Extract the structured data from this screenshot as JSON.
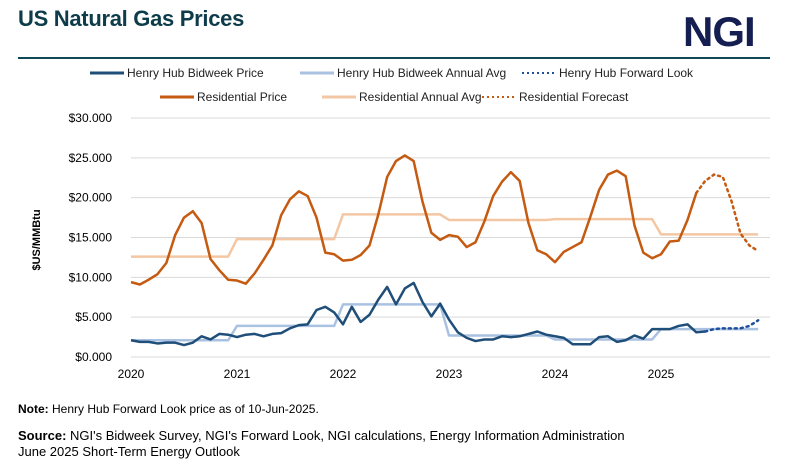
{
  "header": {
    "title": "US Natural Gas Prices",
    "logo": "NGI"
  },
  "footer": {
    "note_label": "Note:",
    "note_text": "Henry Hub Forward Look price as of 10-Jun-2025.",
    "source_label": "Source:",
    "source_text": "NGI's Bidweek Survey, NGI's Forward Look, NGI calculations, Energy Information Administration",
    "source_line2": "June 2025 Short-Term Energy Outlook"
  },
  "chart_data": {
    "type": "line",
    "title": "US Natural Gas Prices",
    "ylabel": "$US/MMBtu",
    "xlabel": "",
    "ylim": [
      0,
      30
    ],
    "yticks": [
      "$0.000",
      "$5.000",
      "$10.000",
      "$15.000",
      "$20.000",
      "$25.000",
      "$30.000"
    ],
    "xticks": [
      "2020",
      "2021",
      "2022",
      "2023",
      "2024",
      "2025"
    ],
    "x_start": "2020-01",
    "x_end": "2025-12",
    "x_unit": "month",
    "grid": true,
    "legend_position": "top",
    "series": [
      {
        "name": "Henry Hub Bidweek Price",
        "color": "#1f4e79",
        "style": "solid",
        "start": "2020-01",
        "values": [
          2.1,
          1.9,
          1.9,
          1.7,
          1.8,
          1.8,
          1.5,
          1.8,
          2.6,
          2.2,
          2.9,
          2.8,
          2.5,
          2.8,
          2.9,
          2.6,
          2.9,
          3.0,
          3.6,
          4.0,
          4.1,
          5.9,
          6.3,
          5.6,
          4.1,
          6.3,
          4.4,
          5.3,
          7.2,
          8.8,
          6.6,
          8.6,
          9.3,
          6.9,
          5.1,
          6.7,
          4.7,
          3.1,
          2.4,
          2.0,
          2.2,
          2.2,
          2.6,
          2.5,
          2.6,
          2.9,
          3.2,
          2.8,
          2.6,
          2.4,
          1.6,
          1.6,
          1.6,
          2.5,
          2.6,
          1.9,
          2.1,
          2.7,
          2.3,
          3.5,
          3.5,
          3.5,
          3.9,
          4.1,
          3.1,
          3.2
        ]
      },
      {
        "name": "Henry Hub Bidweek Annual Avg",
        "color": "#a9c2e2",
        "style": "solid",
        "start": "2020-01",
        "annual": {
          "2020": 2.1,
          "2021": 3.9,
          "2022": 6.6,
          "2023": 2.7,
          "2024": 2.2,
          "2025": 3.5
        }
      },
      {
        "name": "Henry Hub Forward Look",
        "color": "#1f4e9a",
        "style": "dotted",
        "start": "2025-06",
        "values": [
          3.2,
          3.5,
          3.6,
          3.6,
          3.6,
          3.9,
          4.6
        ]
      },
      {
        "name": "Residential Price",
        "color": "#c55a11",
        "style": "solid",
        "start": "2020-01",
        "values": [
          9.4,
          9.1,
          9.7,
          10.4,
          11.8,
          15.3,
          17.5,
          18.3,
          16.8,
          12.3,
          10.9,
          9.7,
          9.6,
          9.2,
          10.5,
          12.2,
          14.0,
          17.8,
          19.8,
          20.8,
          20.2,
          17.5,
          13.1,
          12.9,
          12.1,
          12.2,
          12.8,
          14.0,
          17.9,
          22.6,
          24.6,
          25.3,
          24.6,
          19.5,
          15.6,
          14.7,
          15.3,
          15.1,
          13.8,
          14.4,
          17.0,
          20.2,
          22.0,
          23.2,
          22.1,
          16.8,
          13.4,
          12.9,
          11.9,
          13.2,
          13.8,
          14.4,
          17.6,
          21.0,
          22.9,
          23.4,
          22.7,
          16.5,
          13.1,
          12.4,
          12.9,
          14.5,
          14.6,
          17.2,
          20.6
        ]
      },
      {
        "name": "Residential Annual Avg",
        "color": "#f4c7a4",
        "style": "solid",
        "start": "2020-01",
        "annual": {
          "2020": 12.6,
          "2021": 14.8,
          "2022": 17.9,
          "2023": 17.2,
          "2024": 17.3,
          "2025": 15.4
        }
      },
      {
        "name": "Residential Forecast",
        "color": "#c55a11",
        "style": "dotted",
        "start": "2025-05",
        "values": [
          20.6,
          22.1,
          22.9,
          22.6,
          19.5,
          15.5,
          14.0,
          13.3
        ]
      }
    ]
  }
}
